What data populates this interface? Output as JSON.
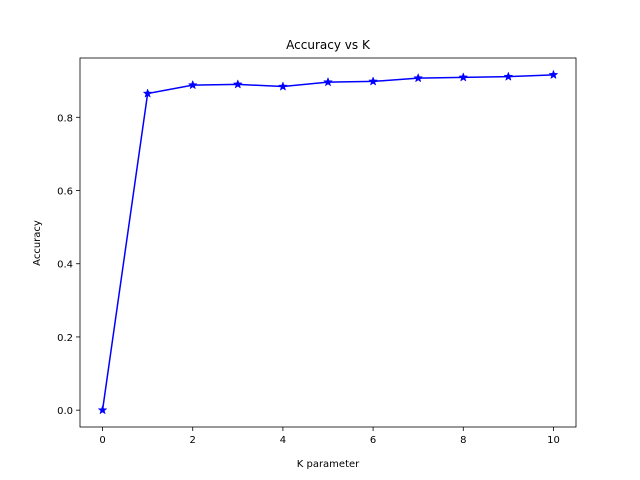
{
  "chart_data": {
    "type": "line",
    "title": "Accuracy vs K",
    "xlabel": "K parameter",
    "ylabel": "Accuracy",
    "xlim": [
      -0.5,
      10.5
    ],
    "ylim": [
      -0.046,
      0.962
    ],
    "x_ticks": [
      0,
      2,
      4,
      6,
      8,
      10
    ],
    "y_ticks": [
      0.0,
      0.2,
      0.4,
      0.6,
      0.8
    ],
    "y_tick_labels": [
      "0.0",
      "0.2",
      "0.4",
      "0.6",
      "0.8"
    ],
    "grid": false,
    "legend": "none",
    "series": [
      {
        "color": "#0000ff",
        "marker": "star",
        "x": [
          0,
          1,
          2,
          3,
          4,
          5,
          6,
          7,
          8,
          9,
          10
        ],
        "y": [
          0.0,
          0.865,
          0.888,
          0.89,
          0.884,
          0.896,
          0.898,
          0.907,
          0.909,
          0.911,
          0.916
        ]
      }
    ]
  }
}
